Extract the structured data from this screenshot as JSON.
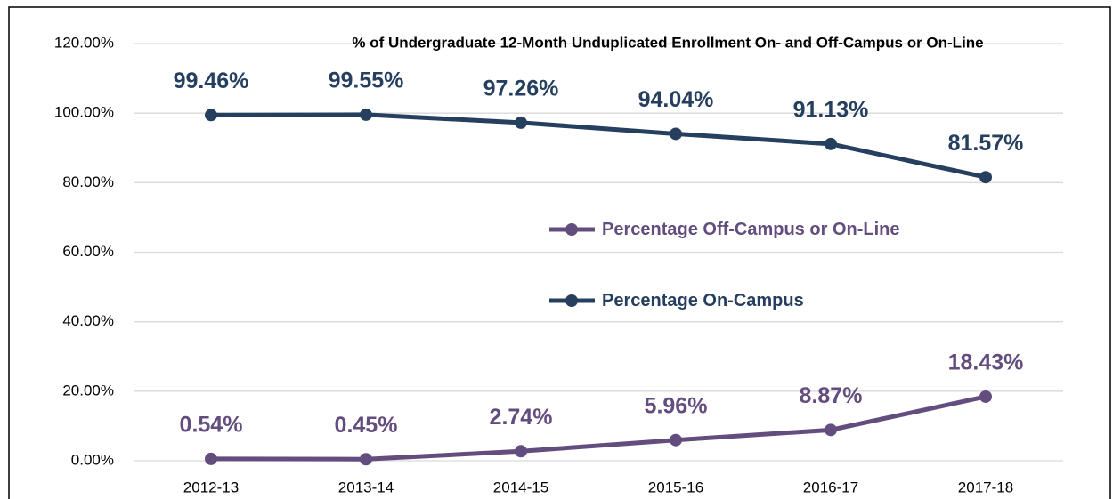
{
  "chart_data": {
    "type": "line",
    "title": "% of Undergraduate 12-Month Unduplicated Enrollment On- and Off-Campus or On-Line",
    "categories": [
      "2012-13",
      "2013-14",
      "2014-15",
      "2015-16",
      "2016-17",
      "2017-18"
    ],
    "series": [
      {
        "name": "Percentage Off-Campus or On-Line",
        "color": "#634d7e",
        "values": [
          0.54,
          0.45,
          2.74,
          5.96,
          8.87,
          18.43
        ],
        "value_labels": [
          "0.54%",
          "0.45%",
          "2.74%",
          "5.96%",
          "8.87%",
          "18.43%"
        ]
      },
      {
        "name": "Percentage On-Campus",
        "color": "#263f5f",
        "values": [
          99.46,
          99.55,
          97.26,
          94.04,
          91.13,
          81.57
        ],
        "value_labels": [
          "99.46%",
          "99.55%",
          "97.26%",
          "94.04%",
          "91.13%",
          "81.57%"
        ]
      }
    ],
    "ylim": [
      0,
      120
    ],
    "yticks": [
      {
        "value": 0,
        "label": "0.00%"
      },
      {
        "value": 20,
        "label": "20.00%"
      },
      {
        "value": 40,
        "label": "40.00%"
      },
      {
        "value": 60,
        "label": "60.00%"
      },
      {
        "value": 80,
        "label": "80.00%"
      },
      {
        "value": 100,
        "label": "100.00%"
      },
      {
        "value": 120,
        "label": "120.00%"
      }
    ],
    "grid": true,
    "legend": "center"
  }
}
